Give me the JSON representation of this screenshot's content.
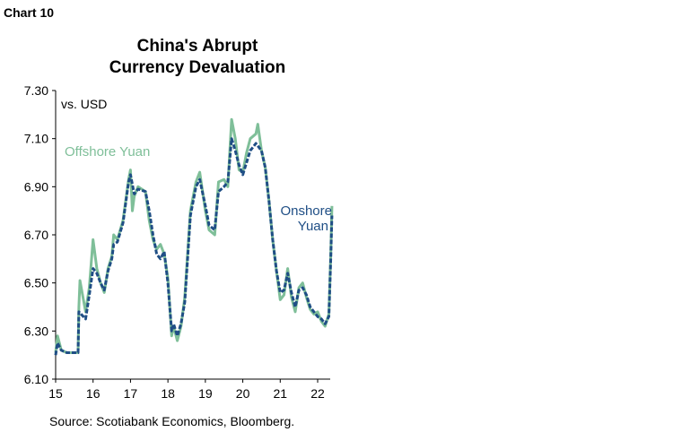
{
  "header": {
    "chart_label": "Chart 10"
  },
  "footer": {
    "source": "Source: Scotiabank Economics, Bloomberg."
  },
  "chart_data": {
    "type": "line",
    "title": "China's Abrupt Currency Devaluation",
    "title_lines": [
      "China's Abrupt",
      "Currency Devaluation"
    ],
    "ylabel": "vs. USD",
    "xlabel": "",
    "xlim": [
      15,
      22.45
    ],
    "ylim": [
      6.1,
      7.3
    ],
    "x_ticks": [
      "15",
      "16",
      "17",
      "18",
      "19",
      "20",
      "21",
      "22"
    ],
    "y_ticks": [
      "6.10",
      "6.30",
      "6.50",
      "6.70",
      "6.90",
      "7.10",
      "7.30"
    ],
    "grid": false,
    "colors": {
      "offshore": "#7fbf99",
      "onshore": "#1f4e85"
    },
    "series": [
      {
        "name": "Offshore Yuan",
        "style": "solid",
        "x": [
          15.0,
          15.05,
          15.15,
          15.3,
          15.6,
          15.62,
          15.65,
          15.8,
          15.9,
          16.0,
          16.1,
          16.2,
          16.3,
          16.4,
          16.5,
          16.55,
          16.65,
          16.8,
          16.95,
          17.0,
          17.05,
          17.1,
          17.2,
          17.4,
          17.5,
          17.6,
          17.7,
          17.8,
          17.9,
          18.0,
          18.1,
          18.15,
          18.25,
          18.35,
          18.45,
          18.6,
          18.75,
          18.85,
          19.0,
          19.1,
          19.25,
          19.35,
          19.5,
          19.6,
          19.7,
          19.8,
          19.9,
          20.0,
          20.1,
          20.2,
          20.35,
          20.4,
          20.5,
          20.6,
          20.7,
          20.8,
          20.9,
          21.0,
          21.1,
          21.2,
          21.3,
          21.4,
          21.5,
          21.6,
          21.7,
          21.8,
          21.9,
          22.0,
          22.1,
          22.2,
          22.3,
          22.35,
          22.38
        ],
        "y": [
          6.21,
          6.28,
          6.22,
          6.21,
          6.21,
          6.4,
          6.51,
          6.38,
          6.48,
          6.68,
          6.56,
          6.5,
          6.46,
          6.56,
          6.61,
          6.7,
          6.68,
          6.76,
          6.93,
          6.97,
          6.8,
          6.86,
          6.9,
          6.88,
          6.76,
          6.68,
          6.64,
          6.66,
          6.62,
          6.52,
          6.28,
          6.32,
          6.26,
          6.32,
          6.44,
          6.8,
          6.92,
          6.96,
          6.8,
          6.72,
          6.7,
          6.92,
          6.93,
          6.9,
          7.18,
          7.1,
          6.97,
          6.96,
          7.04,
          7.1,
          7.12,
          7.16,
          7.05,
          6.98,
          6.84,
          6.68,
          6.55,
          6.43,
          6.45,
          6.56,
          6.44,
          6.38,
          6.48,
          6.5,
          6.44,
          6.39,
          6.37,
          6.38,
          6.34,
          6.32,
          6.37,
          6.62,
          6.82
        ]
      },
      {
        "name": "Onshore Yuan",
        "style": "dashed",
        "x": [
          15.0,
          15.05,
          15.15,
          15.3,
          15.6,
          15.62,
          15.8,
          15.9,
          16.0,
          16.1,
          16.2,
          16.3,
          16.4,
          16.5,
          16.55,
          16.65,
          16.8,
          16.95,
          17.0,
          17.1,
          17.2,
          17.4,
          17.5,
          17.6,
          17.7,
          17.8,
          17.9,
          18.0,
          18.1,
          18.15,
          18.25,
          18.35,
          18.45,
          18.6,
          18.75,
          18.85,
          19.0,
          19.1,
          19.25,
          19.35,
          19.5,
          19.6,
          19.7,
          19.8,
          19.9,
          20.0,
          20.1,
          20.2,
          20.35,
          20.5,
          20.6,
          20.7,
          20.8,
          20.9,
          21.0,
          21.1,
          21.2,
          21.3,
          21.4,
          21.5,
          21.6,
          21.7,
          21.8,
          21.9,
          22.0,
          22.1,
          22.2,
          22.3,
          22.35,
          22.38
        ],
        "y": [
          6.2,
          6.25,
          6.22,
          6.21,
          6.21,
          6.38,
          6.35,
          6.45,
          6.56,
          6.54,
          6.5,
          6.47,
          6.55,
          6.6,
          6.66,
          6.67,
          6.75,
          6.92,
          6.95,
          6.87,
          6.89,
          6.88,
          6.8,
          6.7,
          6.62,
          6.6,
          6.63,
          6.5,
          6.3,
          6.33,
          6.28,
          6.33,
          6.42,
          6.78,
          6.9,
          6.93,
          6.82,
          6.74,
          6.72,
          6.88,
          6.9,
          6.92,
          7.1,
          7.05,
          6.99,
          6.95,
          7.0,
          7.05,
          7.08,
          7.05,
          6.98,
          6.84,
          6.68,
          6.55,
          6.46,
          6.47,
          6.54,
          6.46,
          6.4,
          6.47,
          6.48,
          6.45,
          6.4,
          6.38,
          6.36,
          6.35,
          6.33,
          6.36,
          6.6,
          6.78
        ]
      }
    ],
    "annotations": [
      {
        "text": "Offshore Yuan",
        "series": "Offshore Yuan"
      },
      {
        "text_lines": [
          "Onshore",
          "Yuan"
        ],
        "series": "Onshore Yuan"
      }
    ]
  }
}
